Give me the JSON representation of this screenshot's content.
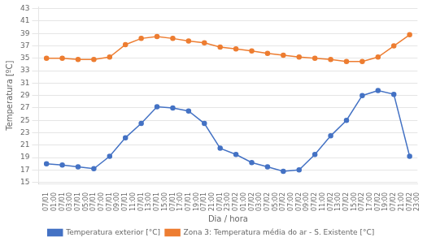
{
  "chart_data": {
    "type": "line",
    "xlabel": "Dia / hora",
    "ylabel": "Temperatura [ºC]",
    "categories": [
      "07/01\n01:00",
      "07/01\n03:00",
      "07/01\n05:00",
      "07/01\n07:00",
      "07/01\n09:00",
      "07/01\n11:00",
      "07/01\n13:00",
      "07/01\n15:00",
      "07/01\n17:00",
      "07/01\n19:00",
      "07/01\n21:00",
      "07/01\n23:00",
      "07/02\n01:00",
      "07/02\n03:00",
      "07/02\n05:00",
      "07/02\n07:00",
      "07/02\n09:00",
      "07/02\n11:00",
      "07/02\n13:00",
      "07/02\n15:00",
      "07/02\n17:00",
      "07/02\n19:00",
      "07/02\n21:00",
      "07/02\n23:00"
    ],
    "series": [
      {
        "name": "Temperatura exterior [°C]",
        "color": "#4472C4",
        "marker": "circle",
        "values": [
          18.0,
          17.8,
          17.5,
          17.2,
          19.2,
          22.2,
          24.5,
          27.2,
          27.0,
          26.5,
          24.5,
          20.5,
          19.5,
          18.2,
          17.5,
          16.8,
          17.0,
          19.5,
          22.5,
          25.0,
          29.0,
          29.8,
          29.2,
          19.2
        ]
      },
      {
        "name": "Zona 3: Temperatura média do ar - S. Existente [°C]",
        "color": "#ED7D31",
        "marker": "circle",
        "values": [
          35.0,
          35.0,
          34.8,
          34.8,
          35.2,
          37.2,
          38.2,
          38.5,
          38.2,
          37.8,
          37.5,
          36.8,
          36.5,
          36.2,
          35.8,
          35.5,
          35.2,
          35.0,
          34.8,
          34.5,
          34.5,
          35.2,
          37.0,
          38.8
        ]
      }
    ],
    "ylim": [
      14.7,
      43.3
    ],
    "yticks": [
      15,
      17,
      19,
      21,
      23,
      25,
      27,
      29,
      31,
      33,
      35,
      37,
      39,
      41,
      43
    ],
    "grid": true,
    "legend": "bottom"
  }
}
